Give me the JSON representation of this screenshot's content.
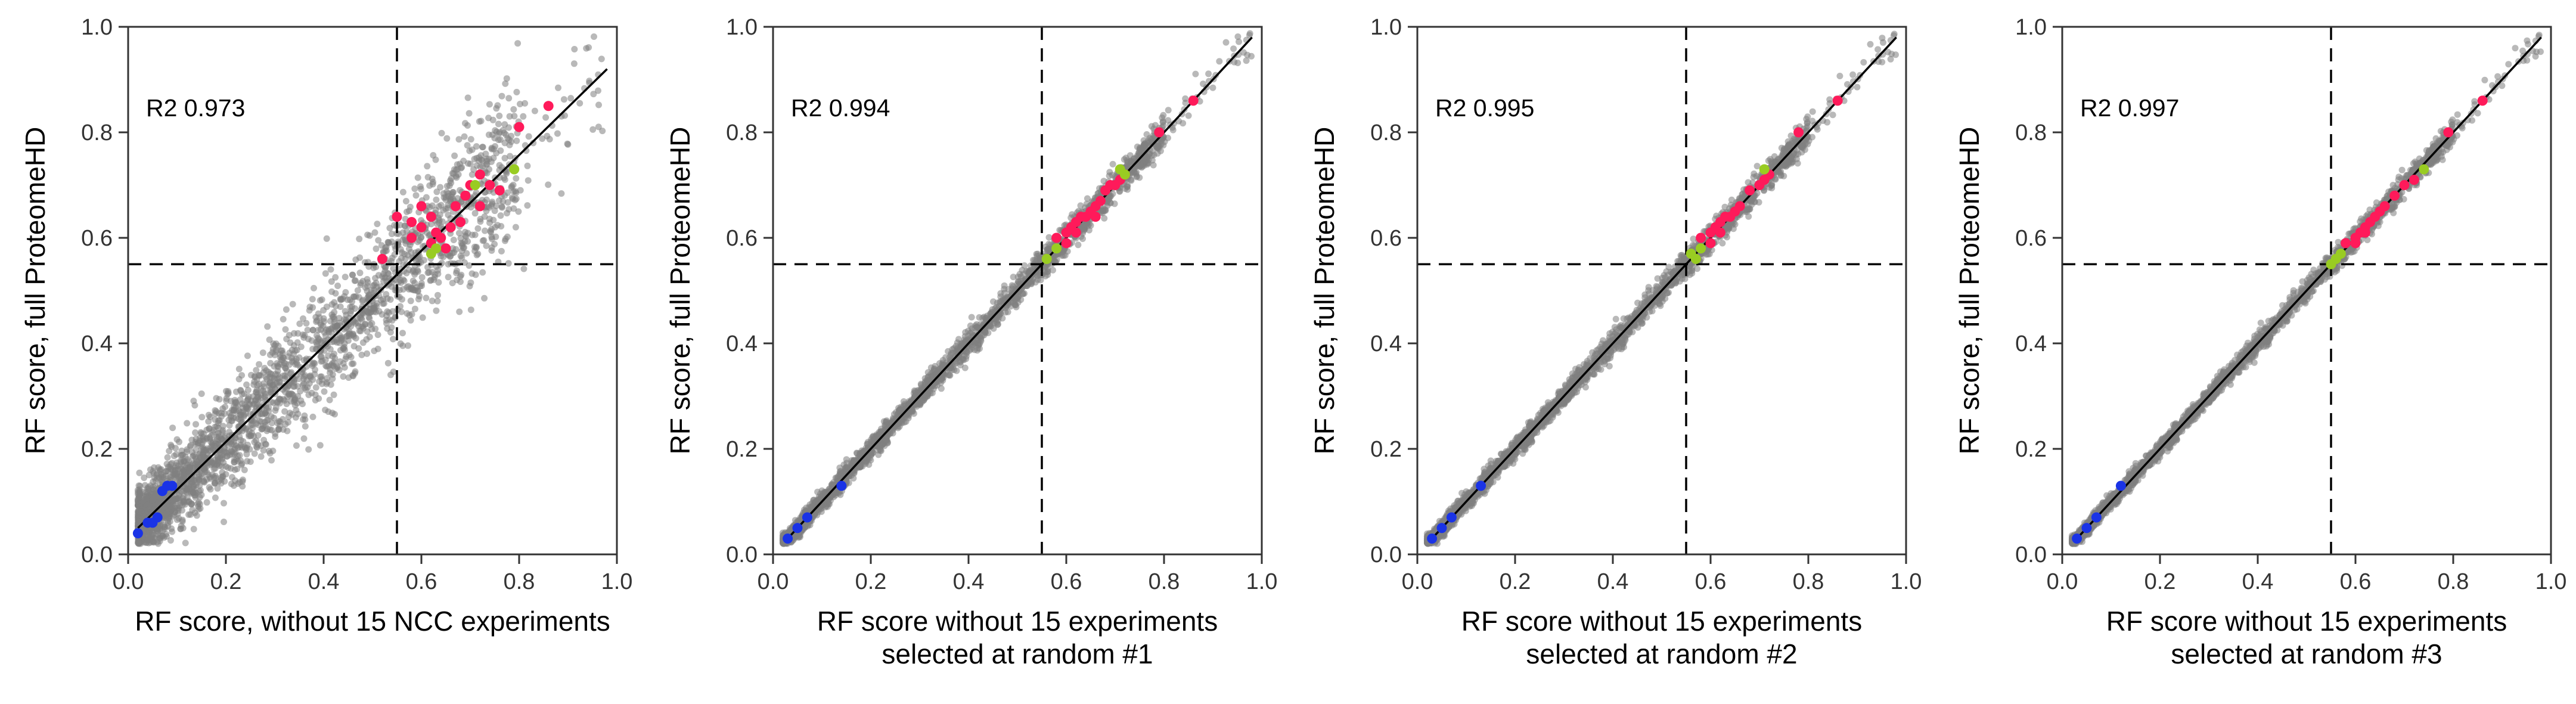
{
  "chart_data": [
    {
      "type": "scatter",
      "title": "",
      "xlabel": [
        "RF score, without 15 NCC experiments"
      ],
      "ylabel": "RF score, full ProteomeHD",
      "xlim": [
        0,
        1
      ],
      "ylim": [
        0,
        1
      ],
      "xticks": [
        "0.0",
        "0.2",
        "0.4",
        "0.6",
        "0.8",
        "1.0"
      ],
      "yticks": [
        "0.0",
        "0.2",
        "0.4",
        "0.6",
        "0.8",
        "1.0"
      ],
      "annotation": "R2 0.973",
      "cutoff_x": 0.55,
      "cutoff_y": 0.55,
      "fit_line": {
        "x": [
          0.02,
          0.98
        ],
        "y": [
          0.05,
          0.92
        ]
      },
      "background_cloud": {
        "color": "#808080",
        "spread": 0.055
      },
      "series": [
        {
          "color": "#ff1a5a",
          "points": [
            [
              0.55,
              0.64
            ],
            [
              0.58,
              0.63
            ],
            [
              0.6,
              0.62
            ],
            [
              0.62,
              0.64
            ],
            [
              0.63,
              0.61
            ],
            [
              0.64,
              0.6
            ],
            [
              0.66,
              0.62
            ],
            [
              0.67,
              0.66
            ],
            [
              0.69,
              0.68
            ],
            [
              0.7,
              0.7
            ],
            [
              0.72,
              0.66
            ],
            [
              0.74,
              0.7
            ],
            [
              0.58,
              0.6
            ],
            [
              0.62,
              0.59
            ],
            [
              0.65,
              0.58
            ],
            [
              0.68,
              0.63
            ],
            [
              0.72,
              0.72
            ],
            [
              0.76,
              0.69
            ],
            [
              0.52,
              0.56
            ],
            [
              0.6,
              0.66
            ],
            [
              0.8,
              0.81
            ],
            [
              0.86,
              0.85
            ]
          ]
        },
        {
          "color": "#99cc22",
          "points": [
            [
              0.62,
              0.57
            ],
            [
              0.71,
              0.7
            ],
            [
              0.79,
              0.73
            ],
            [
              0.63,
              0.58
            ]
          ]
        },
        {
          "color": "#1a33e6",
          "points": [
            [
              0.02,
              0.04
            ],
            [
              0.04,
              0.06
            ],
            [
              0.06,
              0.07
            ],
            [
              0.07,
              0.12
            ],
            [
              0.08,
              0.13
            ],
            [
              0.09,
              0.13
            ],
            [
              0.05,
              0.06
            ]
          ]
        }
      ]
    },
    {
      "type": "scatter",
      "title": "",
      "xlabel": [
        "RF score without 15 experiments",
        "selected at random #1"
      ],
      "ylabel": "RF score, full ProteomeHD",
      "xlim": [
        0,
        1
      ],
      "ylim": [
        0,
        1
      ],
      "xticks": [
        "0.0",
        "0.2",
        "0.4",
        "0.6",
        "0.8",
        "1.0"
      ],
      "yticks": [
        "0.0",
        "0.2",
        "0.4",
        "0.6",
        "0.8",
        "1.0"
      ],
      "annotation": "R2 0.994",
      "cutoff_x": 0.55,
      "cutoff_y": 0.55,
      "fit_line": {
        "x": [
          0.03,
          0.98
        ],
        "y": [
          0.03,
          0.98
        ]
      },
      "background_cloud": {
        "color": "#808080",
        "spread": 0.012
      },
      "series": [
        {
          "color": "#ff1a5a",
          "points": [
            [
              0.58,
              0.6
            ],
            [
              0.6,
              0.61
            ],
            [
              0.61,
              0.62
            ],
            [
              0.62,
              0.63
            ],
            [
              0.63,
              0.64
            ],
            [
              0.64,
              0.64
            ],
            [
              0.65,
              0.65
            ],
            [
              0.66,
              0.66
            ],
            [
              0.67,
              0.67
            ],
            [
              0.68,
              0.69
            ],
            [
              0.69,
              0.7
            ],
            [
              0.7,
              0.7
            ],
            [
              0.71,
              0.71
            ],
            [
              0.72,
              0.72
            ],
            [
              0.79,
              0.8
            ],
            [
              0.86,
              0.86
            ],
            [
              0.62,
              0.61
            ],
            [
              0.66,
              0.64
            ],
            [
              0.6,
              0.59
            ]
          ]
        },
        {
          "color": "#99cc22",
          "points": [
            [
              0.56,
              0.56
            ],
            [
              0.58,
              0.58
            ],
            [
              0.71,
              0.73
            ],
            [
              0.72,
              0.72
            ]
          ]
        },
        {
          "color": "#1a33e6",
          "points": [
            [
              0.03,
              0.03
            ],
            [
              0.05,
              0.05
            ],
            [
              0.07,
              0.07
            ],
            [
              0.14,
              0.13
            ]
          ]
        }
      ]
    },
    {
      "type": "scatter",
      "title": "",
      "xlabel": [
        "RF score without 15 experiments",
        "selected at random #2"
      ],
      "ylabel": "RF score, full ProteomeHD",
      "xlim": [
        0,
        1
      ],
      "ylim": [
        0,
        1
      ],
      "xticks": [
        "0.0",
        "0.2",
        "0.4",
        "0.6",
        "0.8",
        "1.0"
      ],
      "yticks": [
        "0.0",
        "0.2",
        "0.4",
        "0.6",
        "0.8",
        "1.0"
      ],
      "annotation": "R2 0.995",
      "cutoff_x": 0.55,
      "cutoff_y": 0.55,
      "fit_line": {
        "x": [
          0.03,
          0.98
        ],
        "y": [
          0.03,
          0.98
        ]
      },
      "background_cloud": {
        "color": "#808080",
        "spread": 0.011
      },
      "series": [
        {
          "color": "#ff1a5a",
          "points": [
            [
              0.58,
              0.6
            ],
            [
              0.6,
              0.61
            ],
            [
              0.61,
              0.62
            ],
            [
              0.62,
              0.63
            ],
            [
              0.63,
              0.64
            ],
            [
              0.64,
              0.64
            ],
            [
              0.65,
              0.65
            ],
            [
              0.66,
              0.66
            ],
            [
              0.68,
              0.69
            ],
            [
              0.7,
              0.7
            ],
            [
              0.71,
              0.71
            ],
            [
              0.72,
              0.72
            ],
            [
              0.78,
              0.8
            ],
            [
              0.86,
              0.86
            ],
            [
              0.6,
              0.59
            ],
            [
              0.62,
              0.61
            ]
          ]
        },
        {
          "color": "#99cc22",
          "points": [
            [
              0.56,
              0.57
            ],
            [
              0.58,
              0.58
            ],
            [
              0.71,
              0.73
            ],
            [
              0.57,
              0.56
            ]
          ]
        },
        {
          "color": "#1a33e6",
          "points": [
            [
              0.03,
              0.03
            ],
            [
              0.05,
              0.05
            ],
            [
              0.07,
              0.07
            ],
            [
              0.13,
              0.13
            ]
          ]
        }
      ]
    },
    {
      "type": "scatter",
      "title": "",
      "xlabel": [
        "RF score without 15 experiments",
        "selected at random #3"
      ],
      "ylabel": "RF score, full ProteomeHD",
      "xlim": [
        0,
        1
      ],
      "ylim": [
        0,
        1
      ],
      "xticks": [
        "0.0",
        "0.2",
        "0.4",
        "0.6",
        "0.8",
        "1.0"
      ],
      "yticks": [
        "0.0",
        "0.2",
        "0.4",
        "0.6",
        "0.8",
        "1.0"
      ],
      "annotation": "R2 0.997",
      "cutoff_x": 0.55,
      "cutoff_y": 0.55,
      "fit_line": {
        "x": [
          0.03,
          0.98
        ],
        "y": [
          0.03,
          0.98
        ]
      },
      "background_cloud": {
        "color": "#808080",
        "spread": 0.009
      },
      "series": [
        {
          "color": "#ff1a5a",
          "points": [
            [
              0.58,
              0.59
            ],
            [
              0.6,
              0.6
            ],
            [
              0.61,
              0.61
            ],
            [
              0.62,
              0.62
            ],
            [
              0.63,
              0.63
            ],
            [
              0.64,
              0.64
            ],
            [
              0.65,
              0.65
            ],
            [
              0.66,
              0.66
            ],
            [
              0.68,
              0.68
            ],
            [
              0.7,
              0.7
            ],
            [
              0.72,
              0.71
            ],
            [
              0.79,
              0.8
            ],
            [
              0.86,
              0.86
            ],
            [
              0.6,
              0.59
            ],
            [
              0.62,
              0.61
            ]
          ]
        },
        {
          "color": "#99cc22",
          "points": [
            [
              0.56,
              0.56
            ],
            [
              0.57,
              0.57
            ],
            [
              0.74,
              0.73
            ],
            [
              0.55,
              0.55
            ]
          ]
        },
        {
          "color": "#1a33e6",
          "points": [
            [
              0.03,
              0.03
            ],
            [
              0.05,
              0.05
            ],
            [
              0.07,
              0.07
            ],
            [
              0.12,
              0.13
            ]
          ]
        }
      ]
    }
  ]
}
